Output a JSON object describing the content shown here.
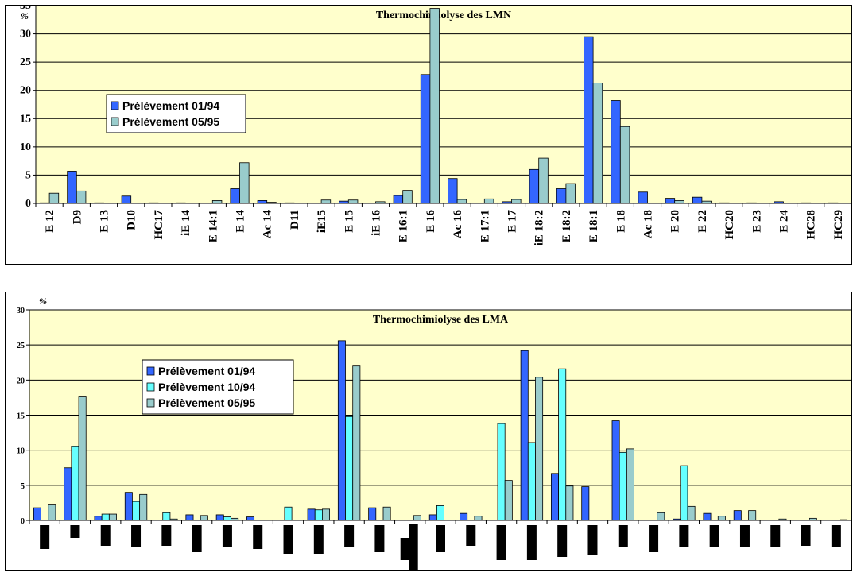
{
  "chart_data": [
    {
      "type": "bar",
      "title": "Thermochimiolyse des LMN",
      "ylabel": "%",
      "ylim": [
        0,
        35
      ],
      "yticks": [
        0,
        5,
        10,
        15,
        20,
        25,
        30,
        35
      ],
      "grid": true,
      "legend": "left",
      "plot_bg": "#ffffcc",
      "categories": [
        "E 12",
        "D9",
        "E 13",
        "D10",
        "HC17",
        "iE 14",
        "E 14:1",
        "E 14",
        "Ac 14",
        "D11",
        "iE15",
        "E 15",
        "iE 16",
        "E 16:1",
        "E 16",
        "Ac 16",
        "E 17:1",
        "E 17",
        "iE 18:2",
        "E 18:2",
        "E 18:1",
        "E 18",
        "Ac 18",
        "E 20",
        "E 22",
        "HC20",
        "E 23",
        "E 24",
        "HC28",
        "HC29"
      ],
      "series": [
        {
          "name": "Prélèvement 01/94",
          "color": "#3366ff",
          "values": [
            0.1,
            5.7,
            0.1,
            1.3,
            0.1,
            0.1,
            0.0,
            2.6,
            0.5,
            0.1,
            0.0,
            0.4,
            0.0,
            1.4,
            22.8,
            4.4,
            0.0,
            0.3,
            6.0,
            2.6,
            29.5,
            18.2,
            2.0,
            0.9,
            1.1,
            0.1,
            0.1,
            0.3,
            0.1,
            0.1
          ]
        },
        {
          "name": "Prélèvement 05/95",
          "color": "#99cccc",
          "values": [
            1.8,
            2.2,
            0.0,
            0.0,
            0.0,
            0.0,
            0.5,
            7.2,
            0.2,
            0.0,
            0.6,
            0.6,
            0.3,
            2.3,
            34.5,
            0.7,
            0.8,
            0.7,
            8.0,
            3.5,
            21.3,
            13.6,
            0.0,
            0.5,
            0.4,
            0.0,
            0.0,
            0.0,
            0.0,
            0.0
          ]
        }
      ]
    },
    {
      "type": "bar",
      "title": "Thermochimiolyse des LMA",
      "ylabel": "%",
      "ylim": [
        0,
        30
      ],
      "yticks": [
        0,
        5,
        10,
        15,
        20,
        25,
        30
      ],
      "grid": true,
      "legend": "left",
      "plot_bg": "#ffffcc",
      "categories": [
        "",
        "",
        "",
        "",
        "",
        "",
        "",
        "",
        "",
        "",
        "",
        "",
        "",
        "",
        "",
        "",
        "",
        "",
        "",
        "",
        "",
        "",
        "",
        "",
        "",
        "",
        ""
      ],
      "series": [
        {
          "name": "Prélèvement 01/94",
          "color": "#3366ff",
          "values": [
            1.8,
            7.5,
            0.6,
            4.0,
            0.0,
            0.8,
            0.8,
            0.5,
            0.0,
            1.6,
            25.6,
            1.8,
            0.0,
            0.8,
            1.0,
            0.0,
            24.2,
            6.7,
            4.8,
            14.2,
            0.0,
            0.2,
            1.0,
            1.4,
            0.0,
            0.0,
            0.0
          ]
        },
        {
          "name": "Prélèvement 10/94",
          "color": "#66ffff",
          "values": [
            0.0,
            10.5,
            0.9,
            2.7,
            1.1,
            0.0,
            0.5,
            0.0,
            1.9,
            1.5,
            14.8,
            0.0,
            0.0,
            2.1,
            0.0,
            13.8,
            11.1,
            21.6,
            0.0,
            9.7,
            0.0,
            7.8,
            0.0,
            0.0,
            0.0,
            0.0,
            0.0
          ]
        },
        {
          "name": "Prélèvement 05/95",
          "color": "#99cccc",
          "values": [
            2.2,
            17.6,
            0.9,
            3.7,
            0.2,
            0.7,
            0.3,
            0.0,
            0.0,
            1.6,
            22.0,
            1.9,
            0.7,
            0.0,
            0.6,
            5.7,
            20.4,
            4.9,
            0.0,
            10.2,
            1.1,
            2.0,
            0.6,
            1.4,
            0.2,
            0.3,
            0.1
          ]
        }
      ]
    }
  ]
}
